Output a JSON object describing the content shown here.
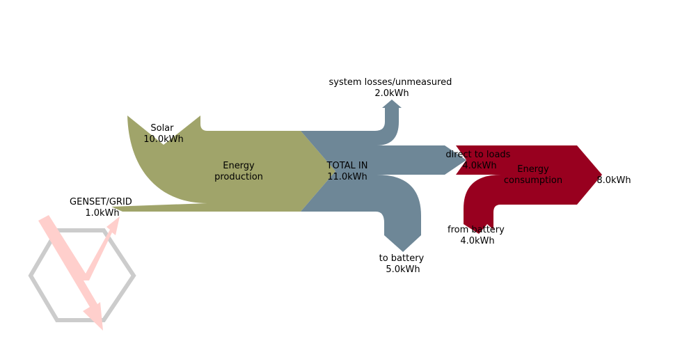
{
  "colors": {
    "production": "#a0a46a",
    "total": "#6e8797",
    "consumption": "#98001f",
    "logo_hex": "#cccccc",
    "logo_bolt": "#ffcfcc"
  },
  "icons": [
    "hexagon-logo-icon",
    "lightning-bolt-icon"
  ],
  "chart_data": {
    "type": "sankey",
    "unit": "kWh",
    "blocks": [
      {
        "name": "Energy\nproduction",
        "inputs": [
          {
            "label": "Solar",
            "value": "10.0kWh",
            "amount": 10.0
          },
          {
            "label": "GENSET/GRID",
            "value": "1.0kWh",
            "amount": 1.0
          }
        ],
        "output": {
          "label": "",
          "amount": 11.0
        }
      },
      {
        "name": "TOTAL IN\n11.0kWh",
        "input_amount": 11.0,
        "outputs": [
          {
            "label": "system losses/unmeasured",
            "value": "2.0kWh",
            "amount": 2.0
          },
          {
            "label": "direct to loads",
            "value": "4.0kWh",
            "amount": 4.0
          },
          {
            "label": "to battery",
            "value": "5.0kWh",
            "amount": 5.0
          }
        ]
      },
      {
        "name": "Energy\nconsumption",
        "inputs": [
          {
            "label": "direct to loads",
            "amount": 4.0
          },
          {
            "label": "from battery",
            "value": "4.0kWh",
            "amount": 4.0
          }
        ],
        "output": {
          "label": "",
          "value": "8.0kWh",
          "amount": 8.0
        }
      }
    ]
  }
}
